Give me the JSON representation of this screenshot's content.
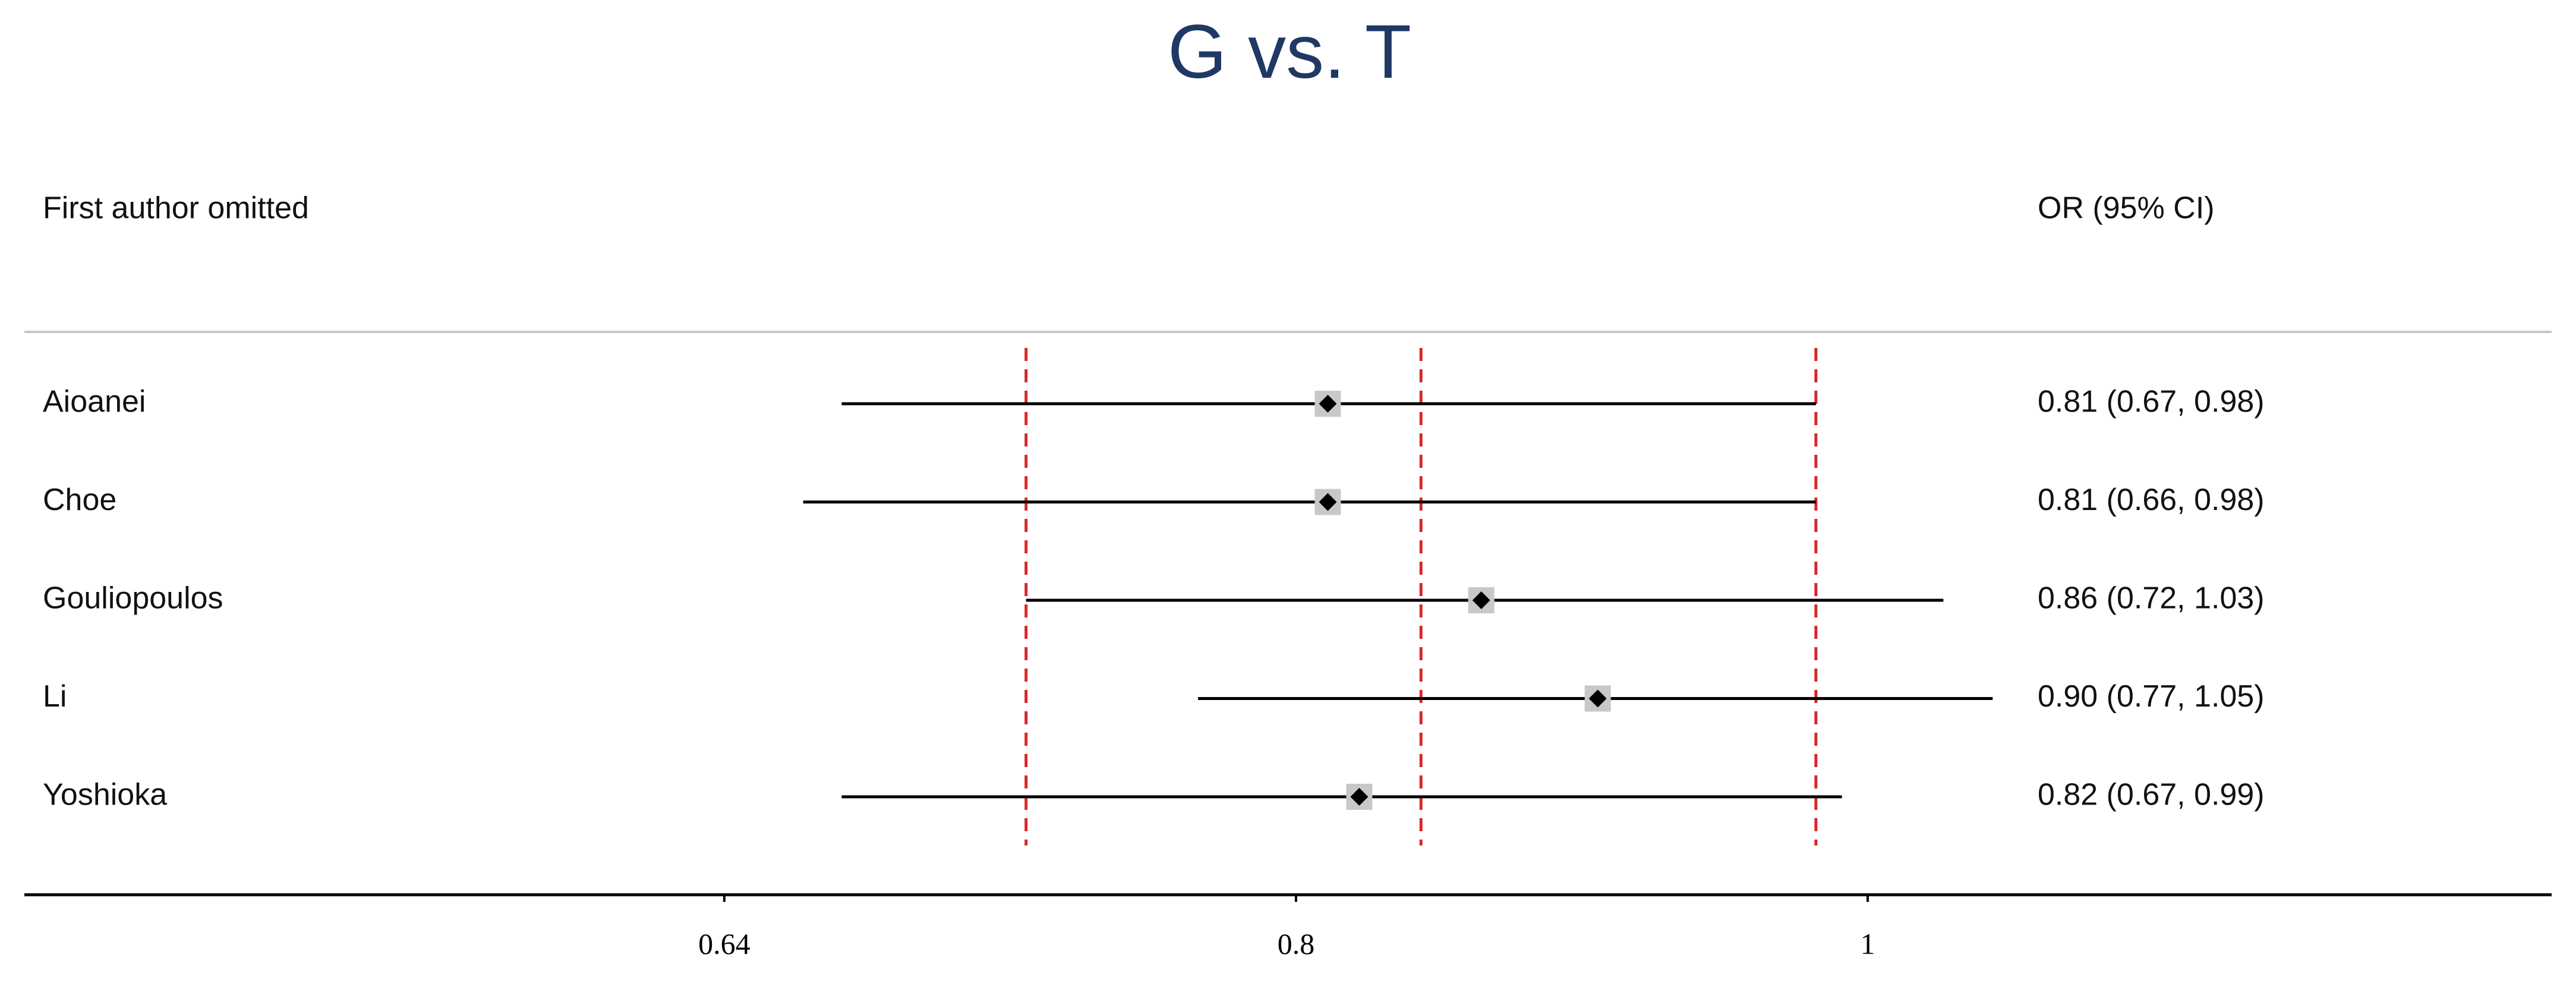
{
  "chart_data": {
    "type": "forest",
    "title": "G vs. T",
    "column_headers": [
      "First author omitted",
      "OR (95% CI)"
    ],
    "categories": [
      "Aioanei",
      "Choe",
      "Gouliopoulos",
      "Li",
      "Yoshioka"
    ],
    "values": [
      0.81,
      0.81,
      0.86,
      0.9,
      0.82
    ],
    "lower": [
      0.67,
      0.66,
      0.72,
      0.77,
      0.67
    ],
    "upper": [
      0.98,
      0.98,
      1.03,
      1.05,
      0.99
    ],
    "value_labels": [
      "0.81 (0.67, 0.98)",
      "0.81 (0.66, 0.98)",
      "0.86 (0.72, 1.03)",
      "0.90 (0.77, 1.05)",
      "0.82 (0.67, 0.99)"
    ],
    "reference_lines": [
      0.72,
      0.84,
      0.98
    ],
    "reference_color": "#d62728",
    "color": "#000000",
    "box_color": "#c8c8c8",
    "log_scale": true,
    "xlim": [
      0.487,
      1.306
    ],
    "xticks": [
      0.64,
      0.8,
      1
    ]
  }
}
